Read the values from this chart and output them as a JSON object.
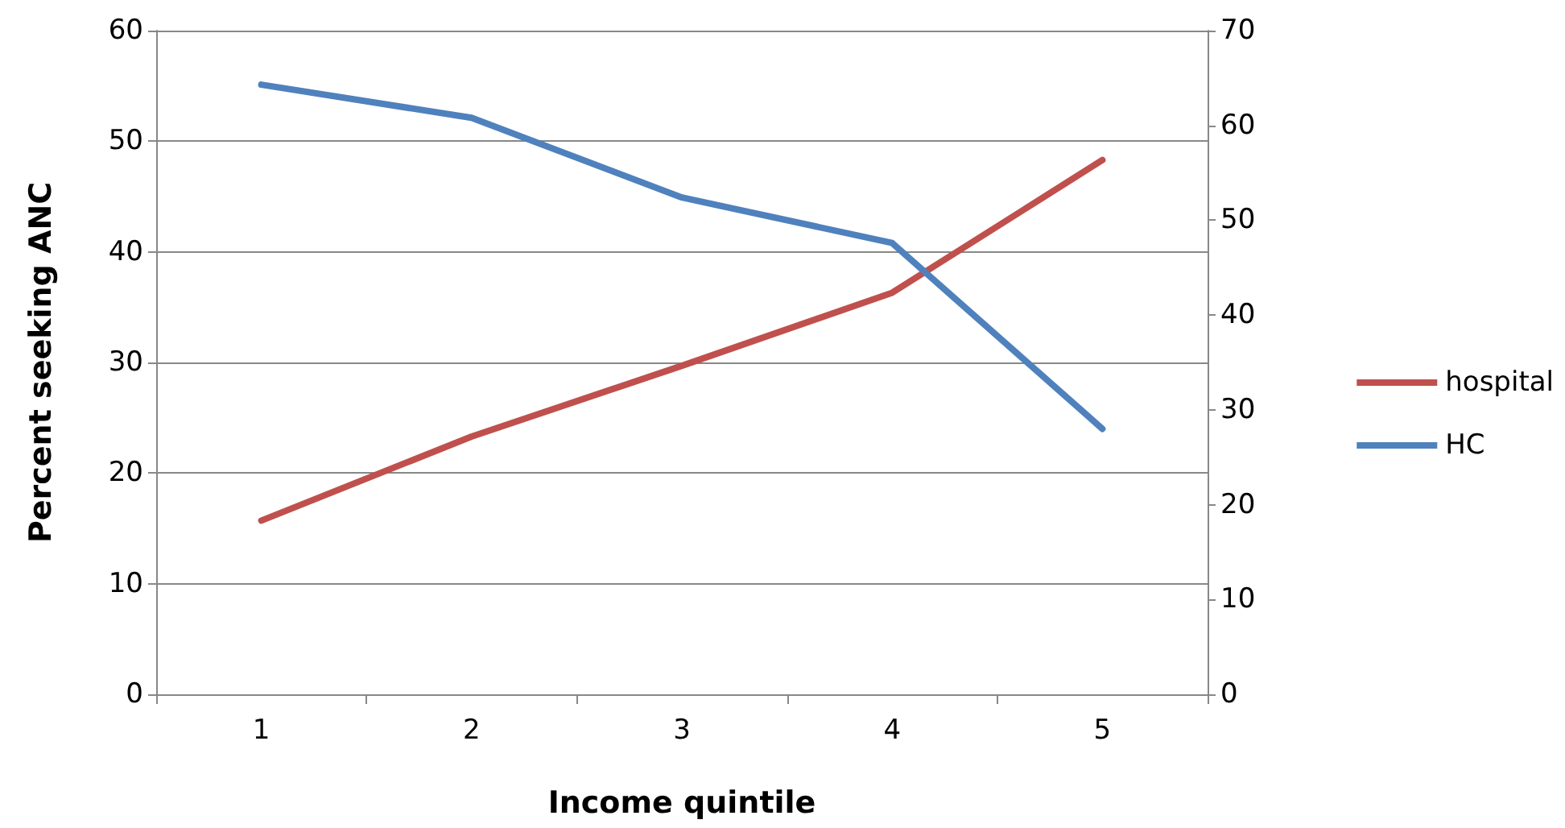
{
  "chart_data": {
    "type": "line",
    "xlabel": "Income quintile",
    "ylabel": "Percent seeking ANC",
    "categories": [
      "1",
      "2",
      "3",
      "4",
      "5"
    ],
    "series": [
      {
        "name": "hospital",
        "color": "#c0504d",
        "values": [
          15.7,
          23.3,
          29.7,
          36.3,
          48.3
        ]
      },
      {
        "name": "HC",
        "color": "#4f81bd",
        "axis": "y2",
        "values": [
          64.3,
          60.8,
          52.4,
          47.6,
          28.0
        ]
      }
    ],
    "ylim": [
      0,
      60
    ],
    "yticks": [
      0,
      10,
      20,
      30,
      40,
      50,
      60
    ],
    "y2lim": [
      0,
      70
    ],
    "y2ticks": [
      0,
      10,
      20,
      30,
      40,
      50,
      60,
      70
    ],
    "grid": "y",
    "legend": "right",
    "marker": "none",
    "line_style": "solid"
  }
}
